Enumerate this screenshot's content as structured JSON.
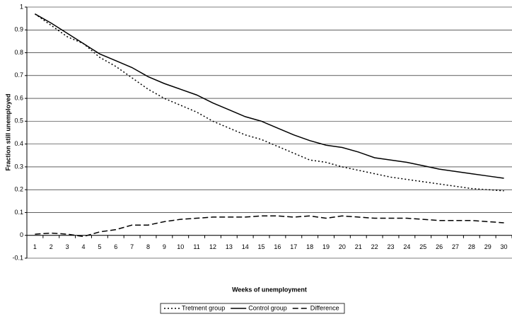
{
  "chart_data": {
    "type": "line",
    "x_label": "Weeks of unemployment",
    "y_label": "Fraction still unemployed",
    "categories": [
      "1",
      "2",
      "3",
      "4",
      "5",
      "6",
      "7",
      "8",
      "9",
      "10",
      "11",
      "12",
      "13",
      "14",
      "15",
      "16",
      "17",
      "18",
      "19",
      "20",
      "21",
      "22",
      "23",
      "24",
      "25",
      "26",
      "27",
      "28",
      "29",
      "30"
    ],
    "series": [
      {
        "name": "Tretment group",
        "color": "#000000",
        "dash": "dotted",
        "values": [
          0.97,
          0.92,
          0.87,
          0.84,
          0.78,
          0.74,
          0.69,
          0.64,
          0.6,
          0.57,
          0.54,
          0.5,
          0.47,
          0.44,
          0.42,
          0.39,
          0.36,
          0.33,
          0.32,
          0.3,
          0.285,
          0.27,
          0.255,
          0.245,
          0.235,
          0.225,
          0.215,
          0.205,
          0.2,
          0.195
        ]
      },
      {
        "name": "Control group",
        "color": "#000000",
        "dash": "solid",
        "values": [
          0.97,
          0.93,
          0.885,
          0.84,
          0.795,
          0.765,
          0.735,
          0.695,
          0.665,
          0.64,
          0.615,
          0.58,
          0.55,
          0.52,
          0.5,
          0.47,
          0.44,
          0.415,
          0.395,
          0.385,
          0.365,
          0.34,
          0.33,
          0.32,
          0.305,
          0.29,
          0.28,
          0.27,
          0.26,
          0.25
        ]
      },
      {
        "name": "Difference",
        "color": "#000000",
        "dash": "dashed",
        "values": [
          0.005,
          0.01,
          0.005,
          -0.005,
          0.015,
          0.025,
          0.045,
          0.045,
          0.06,
          0.07,
          0.075,
          0.08,
          0.08,
          0.08,
          0.085,
          0.085,
          0.08,
          0.085,
          0.075,
          0.085,
          0.08,
          0.075,
          0.075,
          0.075,
          0.07,
          0.065,
          0.065,
          0.065,
          0.06,
          0.055
        ]
      }
    ],
    "ylim": [
      -0.1,
      1
    ],
    "yticks": [
      1,
      0.9,
      0.8,
      0.7,
      0.6,
      0.5,
      0.4,
      0.3,
      0.2,
      0.1,
      0,
      -0.1
    ],
    "grid": true,
    "legend": "bottom"
  }
}
